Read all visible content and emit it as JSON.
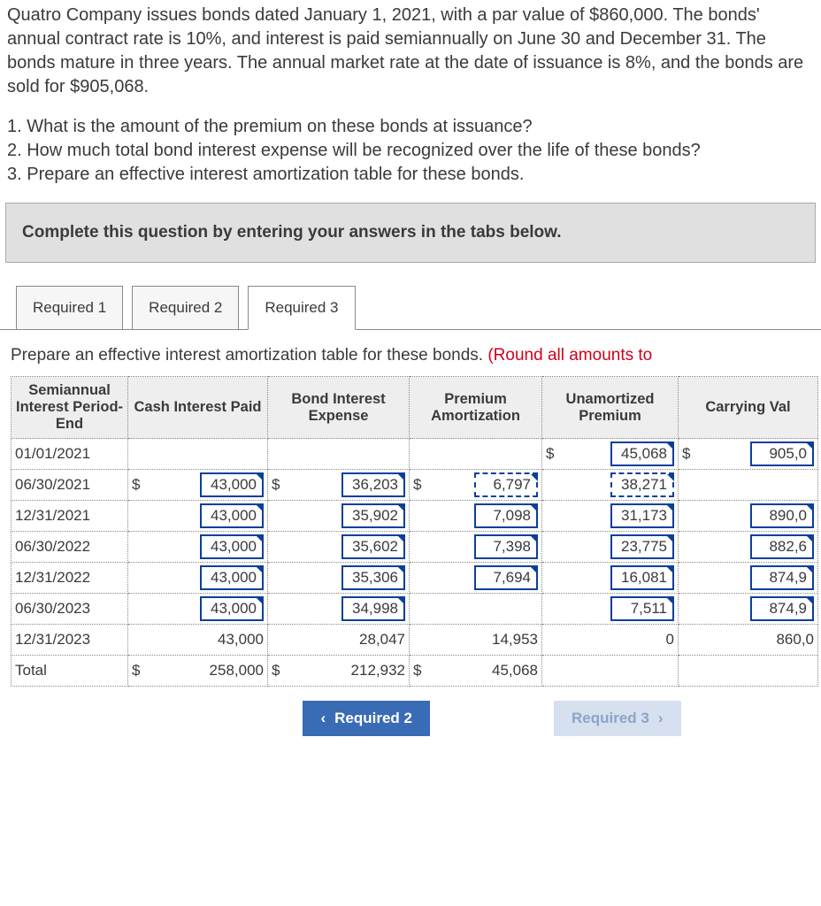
{
  "problem": {
    "paragraph": "Quatro Company issues bonds dated January 1, 2021, with a par value of $860,000. The bonds' annual contract rate is 10%, and interest is paid semiannually on June 30 and December 31. The bonds mature in three years. The annual market rate at the date of issuance is 8%, and the bonds are sold for $905,068.",
    "q1": "1. What is the amount of the premium on these bonds at issuance?",
    "q2": "2. How much total bond interest expense will be recognized over the life of these bonds?",
    "q3": "3. Prepare an effective interest amortization table for these bonds."
  },
  "instruction": "Complete this question by entering your answers in the tabs below.",
  "tabs": {
    "t1": "Required 1",
    "t2": "Required 2",
    "t3": "Required 3",
    "active": "t3"
  },
  "task": {
    "black": "Prepare an effective interest amortization table for these bonds. ",
    "red": "(Round all amounts to"
  },
  "headers": {
    "period": "Semiannual Interest Period-End",
    "cash": "Cash Interest Paid",
    "expense": "Bond Interest Expense",
    "amort": "Premium Amortization",
    "unamort": "Unamortized Premium",
    "carry": "Carrying Val"
  },
  "col_widths": {
    "period": 132,
    "cash": 158,
    "expense": 160,
    "amort": 150,
    "unamort": 154,
    "carry": 158
  },
  "rows": [
    {
      "period": "01/01/2021",
      "cash": "",
      "expense": "",
      "amort": "",
      "unamort": "45,068",
      "carry": "905,0",
      "first": true
    },
    {
      "period": "06/30/2021",
      "cash": "43,000",
      "expense": "36,203",
      "amort": "6,797",
      "unamort": "38,271",
      "carry": "",
      "lead": true
    },
    {
      "period": "12/31/2021",
      "cash": "43,000",
      "expense": "35,902",
      "amort": "7,098",
      "unamort": "31,173",
      "carry": "890,0"
    },
    {
      "period": "06/30/2022",
      "cash": "43,000",
      "expense": "35,602",
      "amort": "7,398",
      "unamort": "23,775",
      "carry": "882,6"
    },
    {
      "period": "12/31/2022",
      "cash": "43,000",
      "expense": "35,306",
      "amort": "7,694",
      "unamort": "16,081",
      "carry": "874,9"
    },
    {
      "period": "06/30/2023",
      "cash": "43,000",
      "expense": "34,998",
      "amort": "",
      "unamort": "7,511",
      "carry": "874,9"
    },
    {
      "period": "12/31/2023",
      "cash": "43,000",
      "expense": "28,047",
      "amort": "14,953",
      "unamort": "0",
      "carry": "860,0",
      "plain": true
    }
  ],
  "total": {
    "label": "Total",
    "cash": "258,000",
    "expense": "212,932",
    "amort": "45,068"
  },
  "nav": {
    "prev": "Required 2",
    "next": "Required 3"
  },
  "colors": {
    "input_border": "#0a3f9b",
    "header_bg": "#eeeeee",
    "instruction_bg": "#e0e0e0",
    "red_text": "#d0021b",
    "nav_prev_bg": "#3a6bb5",
    "nav_next_bg": "#d6e0ef"
  }
}
